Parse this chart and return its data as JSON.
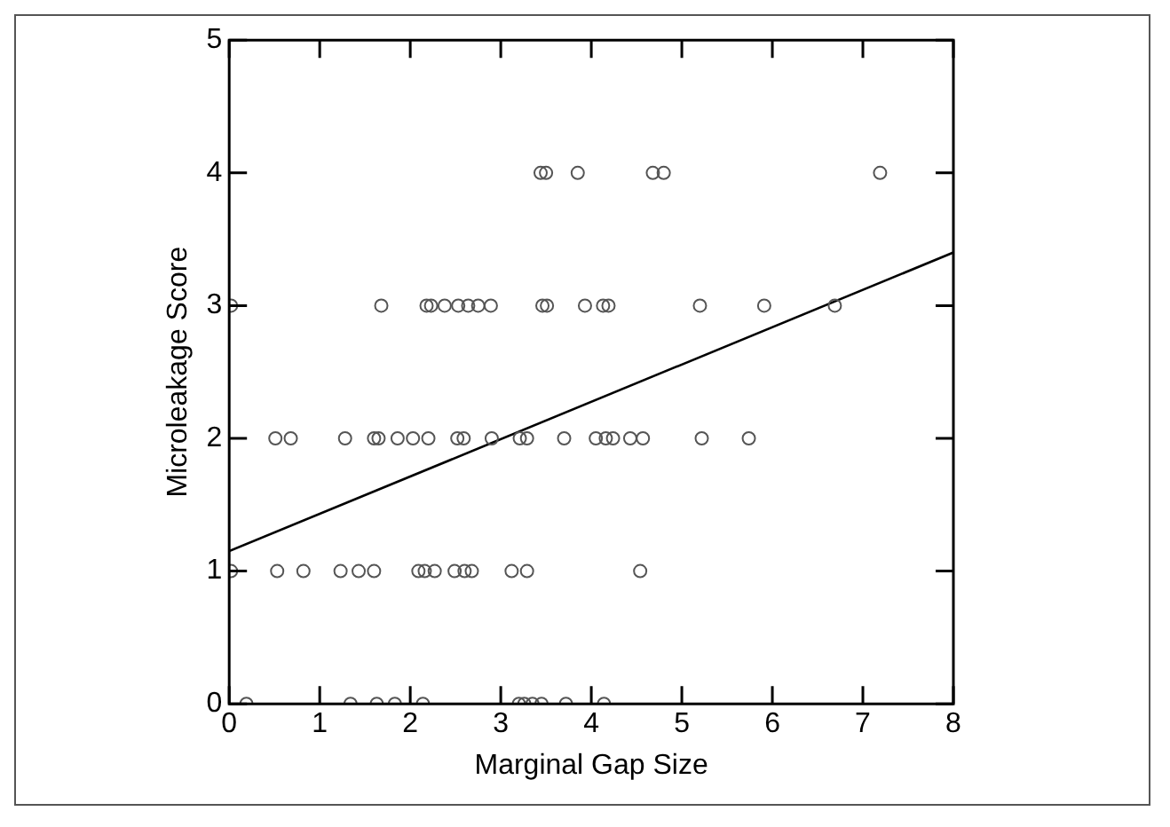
{
  "chart_data": {
    "type": "scatter",
    "xlabel": "Marginal Gap Size",
    "ylabel": "Microleakage Score",
    "xlim": [
      0,
      8
    ],
    "ylim": [
      0,
      5
    ],
    "xticks": [
      0,
      1,
      2,
      3,
      4,
      5,
      6,
      7,
      8
    ],
    "yticks": [
      0,
      1,
      2,
      3,
      4,
      5
    ],
    "grid": false,
    "legend": false,
    "marker": "circle",
    "series": [
      {
        "color": "#555555",
        "x": [
          0.19,
          1.34,
          1.63,
          1.83,
          2.14,
          3.2,
          3.26,
          3.35,
          3.45,
          3.72,
          4.14,
          0.02,
          0.53,
          0.82,
          1.23,
          1.43,
          1.6,
          2.09,
          2.16,
          2.27,
          2.49,
          2.6,
          2.68,
          3.12,
          3.29,
          4.54,
          0.51,
          0.68,
          1.28,
          1.6,
          1.65,
          1.86,
          2.03,
          2.2,
          2.52,
          2.59,
          2.9,
          3.21,
          3.29,
          3.7,
          4.05,
          4.16,
          4.24,
          4.43,
          4.57,
          5.22,
          5.74,
          0.02,
          1.68,
          2.18,
          2.23,
          2.38,
          2.53,
          2.64,
          2.75,
          2.89,
          3.46,
          3.51,
          3.93,
          4.13,
          4.19,
          5.2,
          5.91,
          6.69,
          3.44,
          3.5,
          3.85,
          4.68,
          4.8,
          7.19
        ],
        "values": [
          0,
          0,
          0,
          0,
          0,
          0,
          0,
          0,
          0,
          0,
          0,
          1,
          1,
          1,
          1,
          1,
          1,
          1,
          1,
          1,
          1,
          1,
          1,
          1,
          1,
          1,
          2,
          2,
          2,
          2,
          2,
          2,
          2,
          2,
          2,
          2,
          2,
          2,
          2,
          2,
          2,
          2,
          2,
          2,
          2,
          2,
          2,
          3,
          3,
          3,
          3,
          3,
          3,
          3,
          3,
          3,
          3,
          3,
          3,
          3,
          3,
          3,
          3,
          3,
          4,
          4,
          4,
          4,
          4,
          4
        ]
      },
      {
        "type": "line",
        "color": "#000000",
        "marker": "none",
        "line_style": "solid",
        "x": [
          0,
          8
        ],
        "values": [
          1.15,
          3.4
        ]
      }
    ]
  }
}
